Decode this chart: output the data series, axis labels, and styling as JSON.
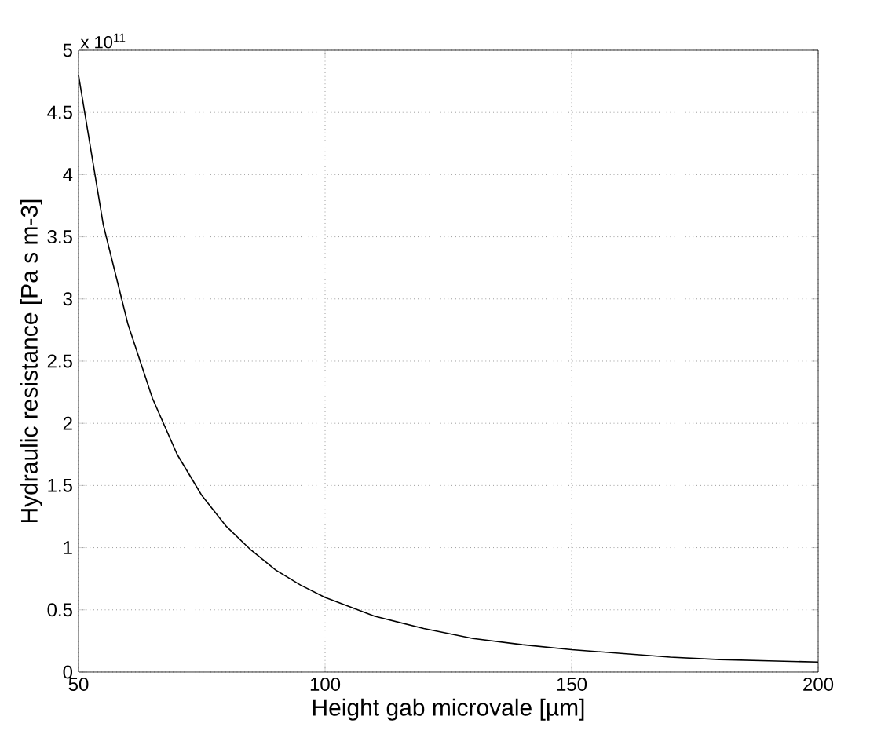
{
  "chart_data": {
    "type": "line",
    "xlabel": "Height gab microvale [µm]",
    "ylabel": "Hydraulic resistance [Pa s m-3]",
    "annotations": [
      "x 10$^{11}$"
    ],
    "x": [
      50,
      55,
      60,
      65,
      70,
      75,
      80,
      85,
      90,
      95,
      100,
      110,
      120,
      130,
      140,
      150,
      160,
      170,
      180,
      190,
      200
    ],
    "series": [
      {
        "color": "#000000",
        "values": [
          4.8,
          3.6,
          2.8,
          2.2,
          1.75,
          1.42,
          1.17,
          0.98,
          0.82,
          0.7,
          0.6,
          0.45,
          0.35,
          0.27,
          0.22,
          0.18,
          0.15,
          0.12,
          0.1,
          0.09,
          0.08
        ]
      }
    ],
    "xlim": [
      50,
      200
    ],
    "ylim": [
      0,
      5
    ],
    "xticks": [
      50,
      100,
      150,
      200
    ],
    "yticks": [
      0,
      0.5,
      1,
      1.5,
      2,
      2.5,
      3,
      3.5,
      4,
      4.5,
      5
    ],
    "grid": true,
    "line_style": "solid",
    "marker": "none"
  }
}
